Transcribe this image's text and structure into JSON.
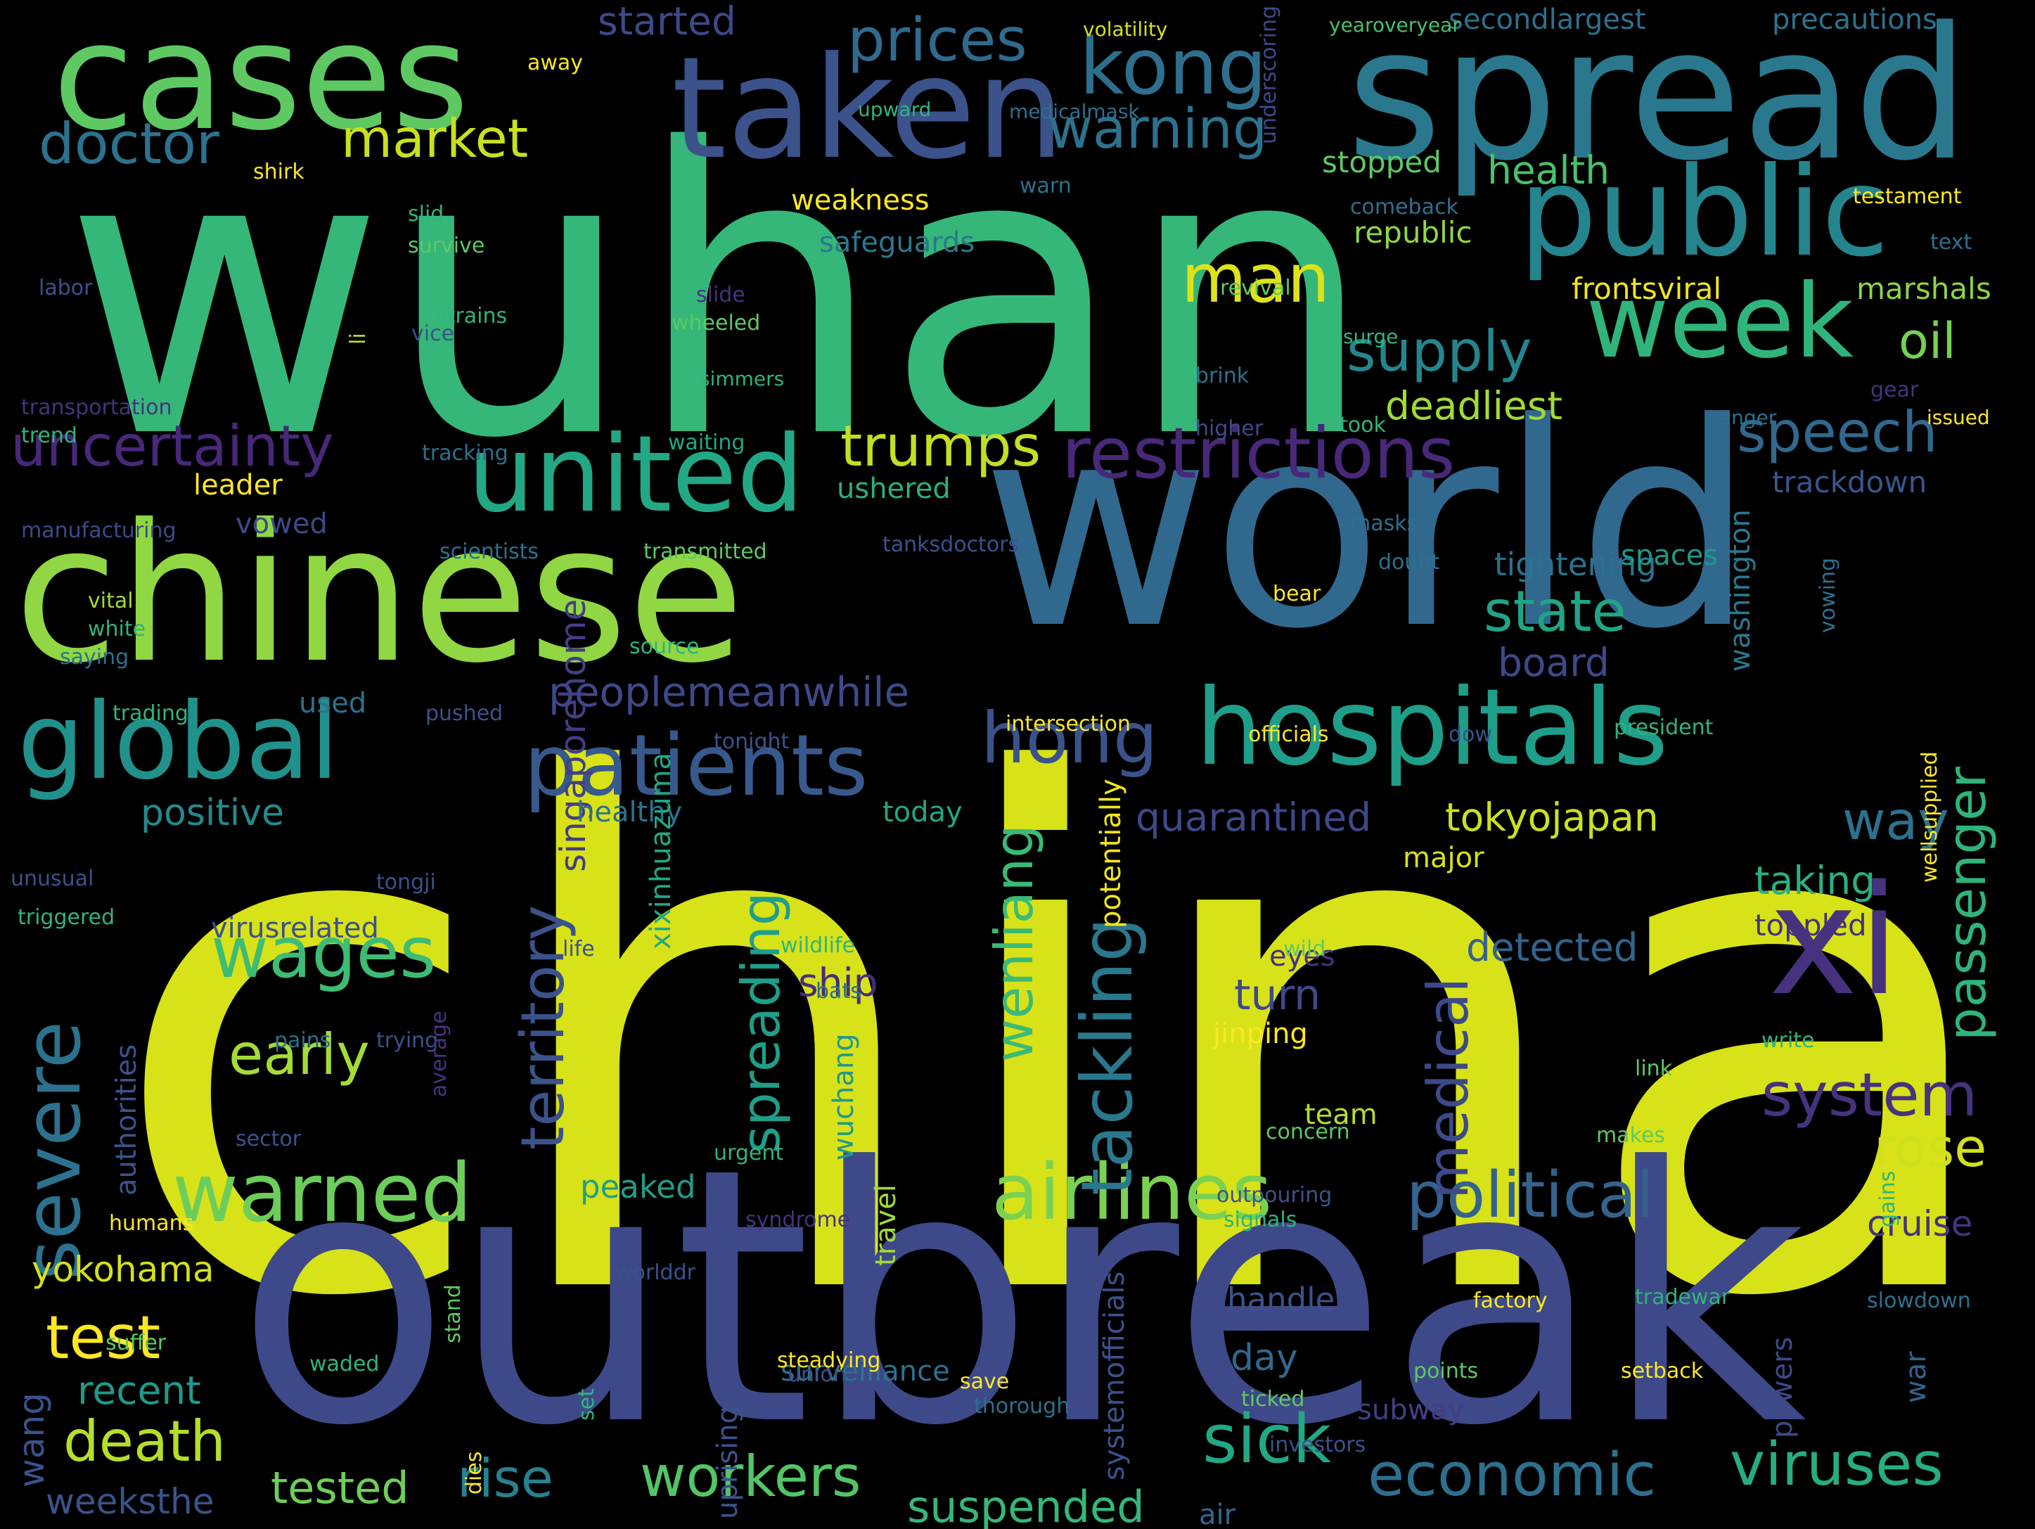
{
  "background_color": "#000000",
  "colormap": [
    "#440154",
    "#46327e",
    "#365c8d",
    "#277f8e",
    "#1fa187",
    "#4ac16d",
    "#a0da39",
    "#fde725"
  ],
  "words": [
    {
      "text": "china",
      "color": "#d8e219"
    },
    {
      "text": "wuhan",
      "color": "#35b779"
    },
    {
      "text": "outbreak",
      "color": "#3e4989"
    },
    {
      "text": "world",
      "color": "#31688e"
    },
    {
      "text": "chinese",
      "color": "#90d743"
    },
    {
      "text": "spread",
      "color": "#2a788e"
    },
    {
      "text": "cases",
      "color": "#5ec962"
    },
    {
      "text": "taken",
      "color": "#3b528b"
    },
    {
      "text": "public",
      "color": "#25858e"
    },
    {
      "text": "xi",
      "color": "#46327e"
    },
    {
      "text": "hospitals",
      "color": "#1f9e89"
    },
    {
      "text": "global",
      "color": "#21918c"
    },
    {
      "text": "united",
      "color": "#22a884"
    },
    {
      "text": "week",
      "color": "#2fb47c"
    },
    {
      "text": "severe",
      "color": "#2c728e"
    },
    {
      "text": "patients",
      "color": "#38598c"
    },
    {
      "text": "airlines",
      "color": "#7ad151"
    },
    {
      "text": "restrictions",
      "color": "#482878"
    },
    {
      "text": "warned",
      "color": "#6ccd5a"
    },
    {
      "text": "political",
      "color": "#33638d"
    },
    {
      "text": "kong",
      "color": "#2e6f8e"
    },
    {
      "text": "man",
      "color": "#dde318"
    },
    {
      "text": "prices",
      "color": "#306a8e"
    },
    {
      "text": "wages",
      "color": "#3dbc74"
    },
    {
      "text": "economic",
      "color": "#2d708e"
    },
    {
      "text": "viruses",
      "color": "#27ad81"
    },
    {
      "text": "workers",
      "color": "#52c569"
    },
    {
      "text": "hong",
      "color": "#3b528b"
    },
    {
      "text": "uncertainty",
      "color": "#482878"
    },
    {
      "text": "system",
      "color": "#46327e"
    },
    {
      "text": "speech",
      "color": "#31688e"
    },
    {
      "text": "trumps",
      "color": "#c2df23"
    },
    {
      "text": "supply",
      "color": "#25858e"
    },
    {
      "text": "state",
      "color": "#20a486"
    },
    {
      "text": "warning",
      "color": "#2c728e"
    },
    {
      "text": "market",
      "color": "#c8e020"
    },
    {
      "text": "doctor",
      "color": "#2c728e"
    },
    {
      "text": "death",
      "color": "#b5de2b"
    },
    {
      "text": "test",
      "color": "#fde725"
    },
    {
      "text": "early",
      "color": "#a5db36"
    },
    {
      "text": "sick",
      "color": "#22a884"
    },
    {
      "text": "rise",
      "color": "#26828e"
    },
    {
      "text": "tackling",
      "color": "#2a788e"
    },
    {
      "text": "wenliang",
      "color": "#3aba76"
    },
    {
      "text": "spreading",
      "color": "#1f9e89"
    },
    {
      "text": "territory",
      "color": "#3b528b"
    },
    {
      "text": "medical",
      "color": "#3e4989"
    },
    {
      "text": "passenger",
      "color": "#2fb47c"
    },
    {
      "text": "rose",
      "color": "#d0e11c"
    },
    {
      "text": "way",
      "color": "#2c728e"
    },
    {
      "text": "oil",
      "color": "#75d054"
    },
    {
      "text": "tokyojapan",
      "color": "#cae11f"
    },
    {
      "text": "quarantined",
      "color": "#3e4989"
    },
    {
      "text": "suspended",
      "color": "#35b779"
    },
    {
      "text": "tested",
      "color": "#6ece58"
    },
    {
      "text": "deadliest",
      "color": "#a2da37"
    },
    {
      "text": "peoplemeanwhile",
      "color": "#3e4989"
    },
    {
      "text": "singaporehome",
      "color": "#433e85"
    },
    {
      "text": "yokohama",
      "color": "#d2e21b"
    },
    {
      "text": "positive",
      "color": "#238a8d"
    },
    {
      "text": "detected",
      "color": "#33638d"
    },
    {
      "text": "taking",
      "color": "#2ab07f"
    },
    {
      "text": "cruise",
      "color": "#46327e"
    },
    {
      "text": "handle",
      "color": "#3b528b"
    },
    {
      "text": "recent",
      "color": "#1f9a8a"
    },
    {
      "text": "health",
      "color": "#4ac16d"
    },
    {
      "text": "board",
      "color": "#3e4989"
    },
    {
      "text": "turn",
      "color": "#3e4989"
    },
    {
      "text": "ship",
      "color": "#472d7b"
    },
    {
      "text": "tightening",
      "color": "#2c728e"
    },
    {
      "text": "weeksthe",
      "color": "#3b528b"
    },
    {
      "text": "authorities",
      "color": "#3b528b"
    },
    {
      "text": "peaked",
      "color": "#1f9e89"
    },
    {
      "text": "virusrelated",
      "color": "#3b528b"
    },
    {
      "text": "day",
      "color": "#31688e"
    },
    {
      "text": "team",
      "color": "#b5de2b"
    },
    {
      "text": "jinping",
      "color": "#fde725"
    },
    {
      "text": "frontsviral",
      "color": "#f1e51d"
    },
    {
      "text": "marshals",
      "color": "#8bd646"
    },
    {
      "text": "republic",
      "color": "#8fd744"
    },
    {
      "text": "stopped",
      "color": "#5ec962"
    },
    {
      "text": "ushered",
      "color": "#2ab07f"
    },
    {
      "text": "trackdown",
      "color": "#39568c"
    },
    {
      "text": "toppled",
      "color": "#46327e"
    },
    {
      "text": "eyes",
      "color": "#46327e"
    },
    {
      "text": "safeguards",
      "color": "#2a788e"
    },
    {
      "text": "started",
      "color": "#3e4989"
    },
    {
      "text": "secondlargest",
      "color": "#2d708e"
    },
    {
      "text": "precautions",
      "color": "#2c728e"
    },
    {
      "text": "leader",
      "color": "#fde725"
    },
    {
      "text": "vowed",
      "color": "#3e4989"
    },
    {
      "text": "used",
      "color": "#2d708e"
    },
    {
      "text": "healthy",
      "color": "#2d708e"
    },
    {
      "text": "today",
      "color": "#22a884"
    },
    {
      "text": "major",
      "color": "#d8e219"
    },
    {
      "text": "washington",
      "color": "#2a788e"
    },
    {
      "text": "potentially",
      "color": "#f1e51d"
    },
    {
      "text": "xixinhuazuma",
      "color": "#22a884"
    },
    {
      "text": "surveillance",
      "color": "#2c728e"
    },
    {
      "text": "subway",
      "color": "#433e85"
    },
    {
      "text": "war",
      "color": "#33638d"
    },
    {
      "text": "powers",
      "color": "#3e4989"
    },
    {
      "text": "systemofficials",
      "color": "#3b528b"
    },
    {
      "text": "uprising",
      "color": "#3b528b"
    },
    {
      "text": "wuchang",
      "color": "#1f9a8a"
    },
    {
      "text": "spaces",
      "color": "#1f9a8a"
    },
    {
      "text": "air",
      "color": "#31688e"
    },
    {
      "text": "weakness",
      "color": "#fde725"
    },
    {
      "text": "travel",
      "color": "#a0da39"
    },
    {
      "text": "wang",
      "color": "#3b528b"
    },
    {
      "text": "away",
      "color": "#fde725"
    },
    {
      "text": "volatility",
      "color": "#d2e21b"
    },
    {
      "text": "yearoveryear",
      "color": "#4ac16d"
    },
    {
      "text": "upward",
      "color": "#2fb47c"
    },
    {
      "text": "medicalmask",
      "color": "#2d708e"
    },
    {
      "text": "underscoring",
      "color": "#3e4989"
    },
    {
      "text": "warn",
      "color": "#2d708e"
    },
    {
      "text": "testament",
      "color": "#fde725"
    },
    {
      "text": "comeback",
      "color": "#2d708e"
    },
    {
      "text": "text",
      "color": "#2d708e"
    },
    {
      "text": "shirk",
      "color": "#fde725"
    },
    {
      "text": "slid",
      "color": "#2fb47c"
    },
    {
      "text": "survive",
      "color": "#5ec962"
    },
    {
      "text": "revival",
      "color": "#5ec962"
    },
    {
      "text": "labor",
      "color": "#3b528b"
    },
    {
      "text": "li",
      "color": "#c2df23"
    },
    {
      "text": "strains",
      "color": "#2fb47c"
    },
    {
      "text": "vice",
      "color": "#3b528b"
    },
    {
      "text": "wheeled",
      "color": "#5ec962"
    },
    {
      "text": "slide",
      "color": "#46327e"
    },
    {
      "text": "surge",
      "color": "#2fb47c"
    },
    {
      "text": "brink",
      "color": "#2d708e"
    },
    {
      "text": "simmers",
      "color": "#2fb47c"
    },
    {
      "text": "gear",
      "color": "#46327e"
    },
    {
      "text": "issued",
      "color": "#fde725"
    },
    {
      "text": "anger",
      "color": "#2d708e"
    },
    {
      "text": "transportation",
      "color": "#46327e"
    },
    {
      "text": "trend",
      "color": "#2fb47c"
    },
    {
      "text": "waiting",
      "color": "#22a884"
    },
    {
      "text": "higher",
      "color": "#3e4989"
    },
    {
      "text": "took",
      "color": "#2fb47c"
    },
    {
      "text": "tracking",
      "color": "#2d708e"
    },
    {
      "text": "manufacturing",
      "color": "#3e4989"
    },
    {
      "text": "scientists",
      "color": "#2d708e"
    },
    {
      "text": "transmitted",
      "color": "#5ec962"
    },
    {
      "text": "tanksdoctors",
      "color": "#3b528b"
    },
    {
      "text": "doubt",
      "color": "#2d708e"
    },
    {
      "text": "masks",
      "color": "#2d708e"
    },
    {
      "text": "vital",
      "color": "#a0da39"
    },
    {
      "text": "white",
      "color": "#2fb47c"
    },
    {
      "text": "saying",
      "color": "#2d708e"
    },
    {
      "text": "source",
      "color": "#2fb47c"
    },
    {
      "text": "bear",
      "color": "#fde725"
    },
    {
      "text": "vowing",
      "color": "#2d708e"
    },
    {
      "text": "trading",
      "color": "#2fb47c"
    },
    {
      "text": "pushed",
      "color": "#3b528b"
    },
    {
      "text": "tonight",
      "color": "#3b528b"
    },
    {
      "text": "intersection",
      "color": "#fde725"
    },
    {
      "text": "officials",
      "color": "#fde725"
    },
    {
      "text": "dow",
      "color": "#3b528b"
    },
    {
      "text": "president",
      "color": "#2fb47c"
    },
    {
      "text": "wellsupplied",
      "color": "#fde725"
    },
    {
      "text": "unusual",
      "color": "#3b528b"
    },
    {
      "text": "tongji",
      "color": "#3b528b"
    },
    {
      "text": "triggered",
      "color": "#2fb47c"
    },
    {
      "text": "wildlife",
      "color": "#2fb47c"
    },
    {
      "text": "life",
      "color": "#3b528b"
    },
    {
      "text": "wild",
      "color": "#5ec962"
    },
    {
      "text": "bats",
      "color": "#2d708e"
    },
    {
      "text": "pains",
      "color": "#2d708e"
    },
    {
      "text": "trying",
      "color": "#3b528b"
    },
    {
      "text": "write",
      "color": "#2fb47c"
    },
    {
      "text": "link",
      "color": "#5ec962"
    },
    {
      "text": "average",
      "color": "#46327e"
    },
    {
      "text": "sector",
      "color": "#3b528b"
    },
    {
      "text": "concern",
      "color": "#5ec962"
    },
    {
      "text": "makes",
      "color": "#5ec962"
    },
    {
      "text": "urgent",
      "color": "#2fb47c"
    },
    {
      "text": "outpouring",
      "color": "#3b528b"
    },
    {
      "text": "signals",
      "color": "#2fb47c"
    },
    {
      "text": "humans",
      "color": "#fde725"
    },
    {
      "text": "syndrome",
      "color": "#46327e"
    },
    {
      "text": "worlddr",
      "color": "#3b528b"
    },
    {
      "text": "factory",
      "color": "#fde725"
    },
    {
      "text": "tradewar",
      "color": "#2fb47c"
    },
    {
      "text": "slowdown",
      "color": "#2d708e"
    },
    {
      "text": "suffer",
      "color": "#5ec962"
    },
    {
      "text": "steadying",
      "color": "#fde725"
    },
    {
      "text": "gains",
      "color": "#2fb47c"
    },
    {
      "text": "waded",
      "color": "#2fb47c"
    },
    {
      "text": "stand",
      "color": "#5ec962"
    },
    {
      "text": "save",
      "color": "#fde725"
    },
    {
      "text": "thorough",
      "color": "#2d708e"
    },
    {
      "text": "union",
      "color": "#3b528b"
    },
    {
      "text": "points",
      "color": "#5ec962"
    },
    {
      "text": "setback",
      "color": "#fde725"
    },
    {
      "text": "ticked",
      "color": "#5ec962"
    },
    {
      "text": "dies",
      "color": "#fde725"
    },
    {
      "text": "set",
      "color": "#2fb47c"
    },
    {
      "text": "investors",
      "color": "#3b528b"
    }
  ]
}
